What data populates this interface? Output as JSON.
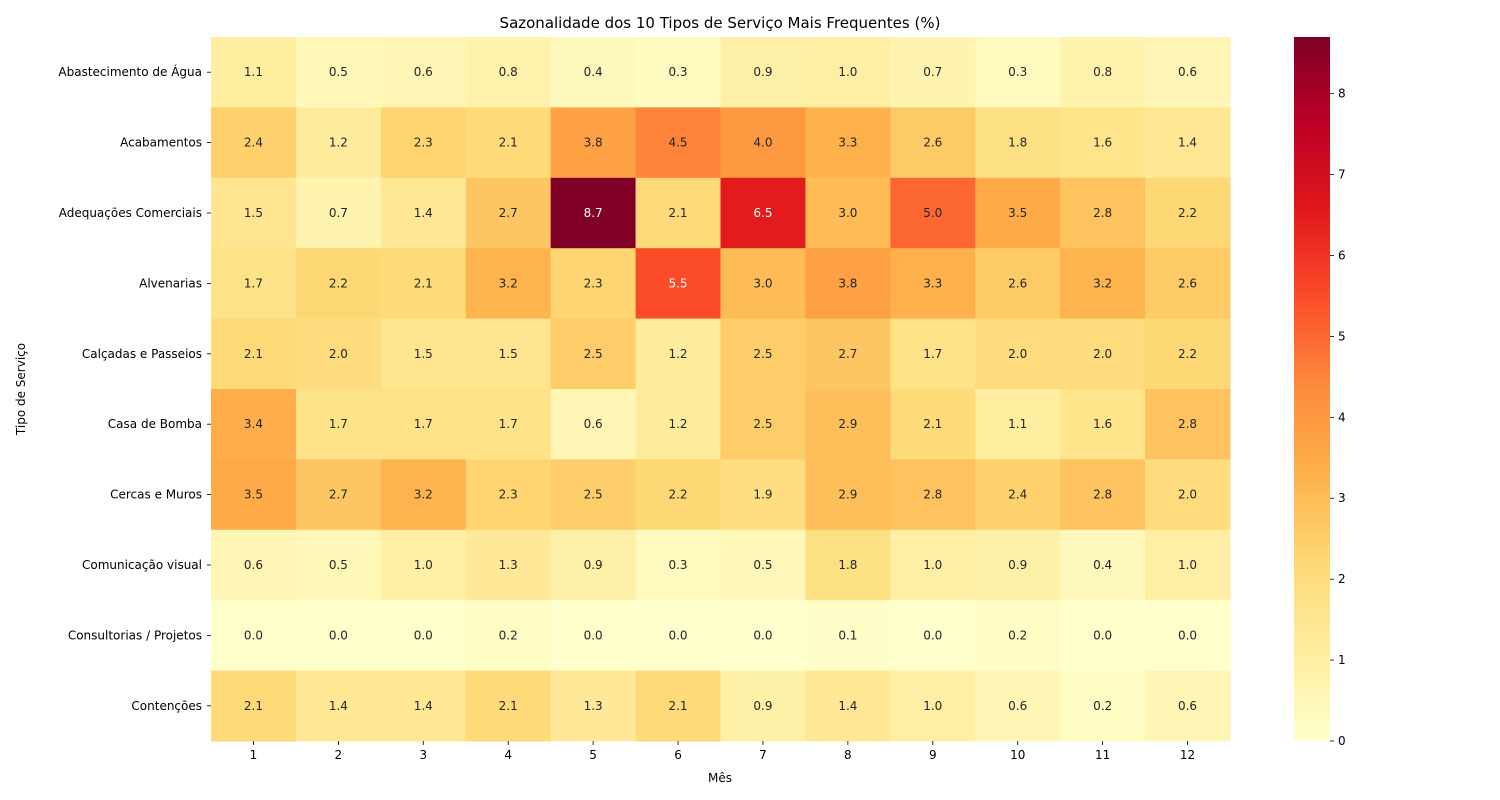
{
  "chart_data": {
    "type": "heatmap",
    "title": "Sazonalidade dos 10 Tipos de Serviço Mais Frequentes (%)",
    "xlabel": "Mês",
    "ylabel": "Tipo de Serviço",
    "x": [
      "1",
      "2",
      "3",
      "4",
      "5",
      "6",
      "7",
      "8",
      "9",
      "10",
      "11",
      "12"
    ],
    "y": [
      "Abastecimento de Água",
      "Acabamentos",
      "Adequações Comerciais",
      "Alvenarias",
      "Calçadas e Passeios",
      "Casa de Bomba",
      "Cercas e Muros",
      "Comunicação visual",
      "Consultorias / Projetos",
      "Contenções"
    ],
    "values": [
      [
        1.1,
        0.5,
        0.6,
        0.8,
        0.4,
        0.3,
        0.9,
        1.0,
        0.7,
        0.3,
        0.8,
        0.6
      ],
      [
        2.4,
        1.2,
        2.3,
        2.1,
        3.8,
        4.5,
        4.0,
        3.3,
        2.6,
        1.8,
        1.6,
        1.4
      ],
      [
        1.5,
        0.7,
        1.4,
        2.7,
        8.7,
        2.1,
        6.5,
        3.0,
        5.0,
        3.5,
        2.8,
        2.2
      ],
      [
        1.7,
        2.2,
        2.1,
        3.2,
        2.3,
        5.5,
        3.0,
        3.8,
        3.3,
        2.6,
        3.2,
        2.6
      ],
      [
        2.1,
        2.0,
        1.5,
        1.5,
        2.5,
        1.2,
        2.5,
        2.7,
        1.7,
        2.0,
        2.0,
        2.2
      ],
      [
        3.4,
        1.7,
        1.7,
        1.7,
        0.6,
        1.2,
        2.5,
        2.9,
        2.1,
        1.1,
        1.6,
        2.8
      ],
      [
        3.5,
        2.7,
        3.2,
        2.3,
        2.5,
        2.2,
        1.9,
        2.9,
        2.8,
        2.4,
        2.8,
        2.0
      ],
      [
        0.6,
        0.5,
        1.0,
        1.3,
        0.9,
        0.3,
        0.5,
        1.8,
        1.0,
        0.9,
        0.4,
        1.0
      ],
      [
        0.0,
        0.0,
        0.0,
        0.2,
        0.0,
        0.0,
        0.0,
        0.1,
        0.0,
        0.2,
        0.0,
        0.0
      ],
      [
        2.1,
        1.4,
        1.4,
        2.1,
        1.3,
        2.1,
        0.9,
        1.4,
        1.0,
        0.6,
        0.2,
        0.6
      ]
    ],
    "colormap": "YlOrRd",
    "vmin": 0,
    "vmax": 8.7,
    "colorbar_ticks": [
      "0",
      "1",
      "2",
      "3",
      "4",
      "5",
      "6",
      "7",
      "8"
    ],
    "annotations": true,
    "grid": false,
    "legend": "colorbar-right"
  }
}
